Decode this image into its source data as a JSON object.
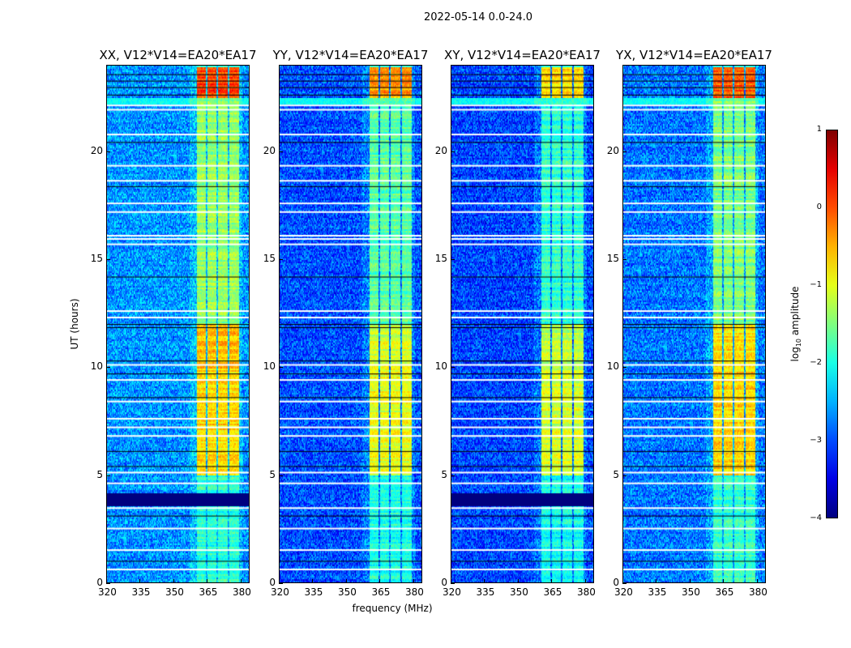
{
  "chart_data": {
    "type": "heatmap",
    "suptitle": "2022-05-14 0.0-24.0",
    "xlabel": "frequency (MHz)",
    "ylabel": "UT (hours)",
    "xlim": [
      320,
      384
    ],
    "ylim": [
      0,
      24
    ],
    "xticks": [
      320,
      335,
      350,
      365,
      380
    ],
    "yticks": [
      0,
      5,
      10,
      15,
      20
    ],
    "colorbar": {
      "label_main": "log",
      "label_sub": "10",
      "label_rest": " amplitude",
      "range": [
        -4,
        1
      ],
      "ticks": [
        1,
        0,
        -1,
        -2,
        -3,
        -4
      ],
      "tick_labels": [
        "1",
        "0",
        "−1",
        "−2",
        "−3",
        "−4"
      ],
      "colormap": "jet"
    },
    "background_level": -2.9,
    "rfi_channels_mhz": [
      [
        360.5,
        364.5
      ],
      [
        365.2,
        369.3
      ],
      [
        370.0,
        374.3
      ],
      [
        375.0,
        379.6
      ]
    ],
    "flagged_hours_white": [
      22.15,
      21.95,
      20.8,
      19.35,
      18.65,
      17.6,
      17.2,
      16.1,
      15.95,
      15.7,
      12.6,
      12.3,
      10.1,
      9.4,
      8.4,
      7.6,
      7.2,
      6.8,
      5.1,
      4.6,
      3.45,
      2.5,
      1.5,
      0.6
    ],
    "flagged_hours_black": [
      23.6,
      23.3,
      23.0,
      22.65,
      20.45,
      18.4,
      14.2,
      12.0,
      11.85,
      10.3,
      9.7,
      8.6,
      6.1,
      5.4,
      3.1,
      1.0
    ],
    "panels": [
      {
        "title": "XX, V12*V14=EA20*EA17",
        "gap_hours": [
          3.6,
          4.15
        ],
        "band_levels": [
          [
            22.5,
            24,
            0.05
          ],
          [
            12,
            22.5,
            -1.4
          ],
          [
            10,
            12,
            -0.6
          ],
          [
            5,
            10,
            -0.7
          ],
          [
            0,
            5,
            -1.9
          ]
        ],
        "bg_offset": 0.25
      },
      {
        "title": "YY, V12*V14=EA20*EA17",
        "gap_hours": null,
        "band_levels": [
          [
            22.5,
            24,
            -0.4
          ],
          [
            12,
            22.5,
            -1.7
          ],
          [
            10,
            12,
            -1.1
          ],
          [
            5,
            10,
            -1.0
          ],
          [
            0,
            5,
            -2.0
          ]
        ],
        "bg_offset": -0.1
      },
      {
        "title": "XY, V12*V14=EA20*EA17",
        "gap_hours": [
          3.6,
          4.15
        ],
        "band_levels": [
          [
            22.5,
            24,
            -0.7
          ],
          [
            12,
            22.5,
            -1.9
          ],
          [
            10,
            12,
            -1.2
          ],
          [
            5,
            10,
            -1.1
          ],
          [
            0,
            5,
            -2.1
          ]
        ],
        "bg_offset": -0.15
      },
      {
        "title": "YX, V12*V14=EA20*EA17",
        "gap_hours": null,
        "band_levels": [
          [
            22.5,
            24,
            -0.1
          ],
          [
            12,
            22.5,
            -1.5
          ],
          [
            10,
            12,
            -0.8
          ],
          [
            5,
            10,
            -0.7
          ],
          [
            0,
            5,
            -1.9
          ]
        ],
        "bg_offset": 0.1
      }
    ]
  }
}
